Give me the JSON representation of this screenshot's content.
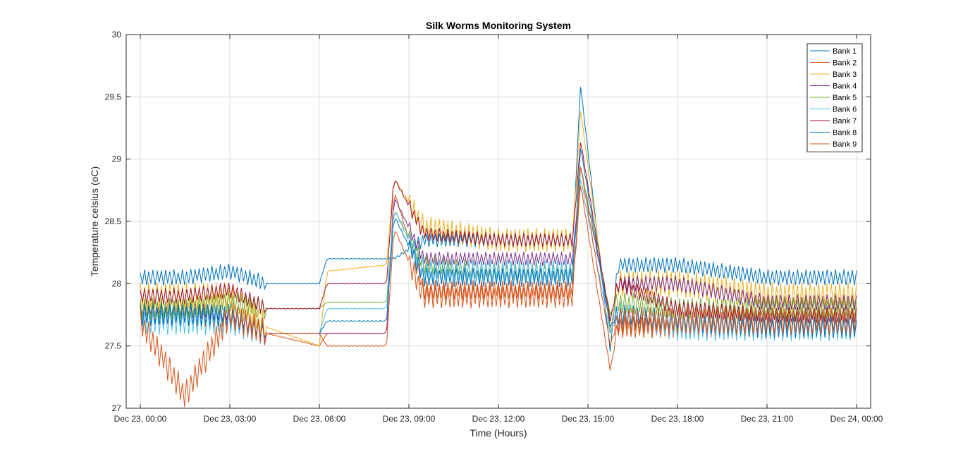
{
  "chart_data": {
    "type": "line",
    "title": "Silk Worms Monitoring System",
    "xlabel": "Time (Hours)",
    "ylabel": "Temperature celsius (oC)",
    "xlim": [
      "Dec 23, 00:00",
      "Dec 24, 00:00"
    ],
    "ylim": [
      27,
      30
    ],
    "x_tick_labels": [
      "Dec 23, 00:00",
      "Dec 23, 03:00",
      "Dec 23, 06:00",
      "Dec 23, 09:00",
      "Dec 23, 12:00",
      "Dec 23, 15:00",
      "Dec 23, 18:00",
      "Dec 23, 21:00",
      "Dec 24, 00:00"
    ],
    "y_tick_labels": [
      "27",
      "27.5",
      "28",
      "28.5",
      "29",
      "29.5",
      "30"
    ],
    "y_ticks": [
      27,
      27.5,
      28,
      28.5,
      29,
      29.5,
      30
    ],
    "grid": true,
    "legend_position": "top-right",
    "x_time_points": [
      "Dec 23, 00:00",
      "Dec 23, 01:30",
      "Dec 23, 03:00",
      "Dec 23, 04:15",
      "Dec 23, 06:00",
      "Dec 23, 06:15",
      "Dec 23, 08:15",
      "Dec 23, 08:30",
      "Dec 23, 09:30",
      "Dec 23, 12:00",
      "Dec 23, 14:30",
      "Dec 23, 14:45",
      "Dec 23, 15:45",
      "Dec 23, 16:00",
      "Dec 23, 18:00",
      "Dec 23, 21:00",
      "Dec 24, 00:00"
    ],
    "series": [
      {
        "name": "Bank 1",
        "color": "#0072BD",
        "values": [
          28.05,
          28.05,
          28.1,
          28.0,
          28.0,
          28.2,
          28.2,
          28.2,
          28.35,
          28.35,
          28.35,
          29.6,
          27.45,
          28.15,
          28.15,
          28.05,
          28.05
        ]
      },
      {
        "name": "Bank 2",
        "color": "#D95319",
        "values": [
          27.75,
          27.75,
          27.7,
          27.6,
          27.5,
          27.6,
          27.6,
          28.75,
          27.95,
          27.95,
          27.95,
          28.8,
          27.3,
          27.65,
          27.65,
          27.65,
          27.65
        ]
      },
      {
        "name": "Bank 3",
        "color": "#EDB120",
        "values": [
          27.9,
          27.9,
          27.9,
          27.65,
          27.5,
          28.1,
          28.15,
          28.85,
          28.45,
          28.35,
          28.35,
          29.4,
          27.6,
          28.0,
          28.0,
          27.9,
          27.9
        ]
      },
      {
        "name": "Bank 4",
        "color": "#7E2F8E",
        "values": [
          27.8,
          27.8,
          27.75,
          27.6,
          27.6,
          27.6,
          27.6,
          28.7,
          28.2,
          28.2,
          28.2,
          28.95,
          27.7,
          28.0,
          28.0,
          27.85,
          27.85
        ]
      },
      {
        "name": "Bank 5",
        "color": "#77AC30",
        "values": [
          27.8,
          27.8,
          27.85,
          27.8,
          27.8,
          27.85,
          27.85,
          28.6,
          28.15,
          28.1,
          28.1,
          28.95,
          27.75,
          27.85,
          27.8,
          27.8,
          27.8
        ]
      },
      {
        "name": "Bank 6",
        "color": "#4DBEEE",
        "values": [
          27.7,
          27.7,
          27.7,
          27.6,
          27.6,
          27.8,
          27.8,
          28.6,
          28.1,
          28.1,
          28.1,
          28.85,
          27.6,
          27.75,
          27.65,
          27.65,
          27.65
        ]
      },
      {
        "name": "Bank 7",
        "color": "#A2142F",
        "values": [
          27.9,
          27.9,
          27.95,
          27.8,
          27.8,
          28.0,
          28.0,
          28.85,
          28.4,
          28.35,
          28.35,
          29.15,
          27.7,
          28.0,
          27.8,
          27.75,
          27.75
        ]
      },
      {
        "name": "Bank 8",
        "color": "#0072BD",
        "values": [
          27.75,
          27.75,
          27.75,
          27.6,
          27.6,
          27.7,
          27.7,
          28.55,
          28.05,
          28.05,
          28.05,
          29.1,
          27.65,
          27.75,
          27.7,
          27.65,
          27.65
        ]
      },
      {
        "name": "Bank 9",
        "color": "#D95319",
        "values": [
          27.7,
          27.1,
          27.75,
          27.6,
          27.6,
          27.5,
          27.5,
          28.45,
          27.9,
          27.9,
          27.9,
          28.95,
          27.5,
          27.7,
          27.7,
          27.7,
          27.7
        ]
      }
    ]
  }
}
